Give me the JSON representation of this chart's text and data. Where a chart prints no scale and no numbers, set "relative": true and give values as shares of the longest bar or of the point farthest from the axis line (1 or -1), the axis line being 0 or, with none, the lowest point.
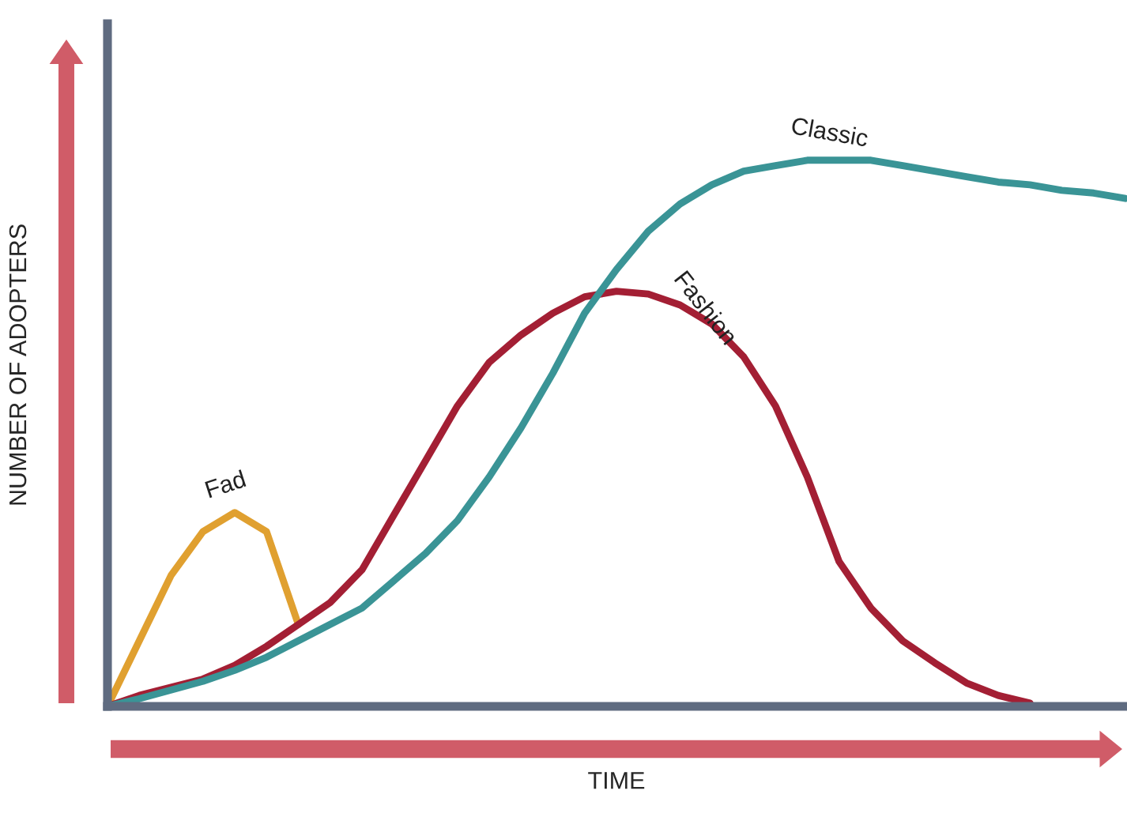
{
  "chart_data": {
    "type": "line",
    "relative": true,
    "xlabel": "TIME",
    "ylabel": "NUMBER OF ADOPTERS",
    "legend": false,
    "marker": "none",
    "line_style": "solid",
    "categories": [
      null,
      null,
      null,
      null,
      null,
      null,
      null,
      null,
      null,
      null,
      null,
      null,
      null,
      null,
      null,
      null,
      null,
      null,
      null,
      null,
      null,
      null,
      null,
      null,
      null,
      null,
      null,
      null,
      null,
      null,
      null,
      null,
      null
    ],
    "series": [
      {
        "name": "Fad",
        "color": "#e0a030",
        "values": [
          0,
          0.12,
          0.24,
          0.32,
          0.355,
          0.32,
          0.15,
          null,
          null,
          null,
          null,
          null,
          null,
          null,
          null,
          null,
          null,
          null,
          null,
          null,
          null,
          null,
          null,
          null,
          null,
          null,
          null,
          null,
          null,
          null,
          null,
          null,
          null
        ]
      },
      {
        "name": "Fashion",
        "color": "#a31f34",
        "values": [
          0,
          0.02,
          0.035,
          0.05,
          0.075,
          0.11,
          0.15,
          0.19,
          0.25,
          0.35,
          0.45,
          0.55,
          0.63,
          0.68,
          0.72,
          0.75,
          0.76,
          0.755,
          0.735,
          0.7,
          0.64,
          0.55,
          0.42,
          0.265,
          0.18,
          0.12,
          0.08,
          0.043,
          0.02,
          0.006,
          null,
          null,
          null
        ]
      },
      {
        "name": "Classic",
        "color": "#3a9496",
        "values": [
          0,
          0.014,
          0.03,
          0.046,
          0.066,
          0.09,
          0.12,
          0.15,
          0.18,
          0.23,
          0.28,
          0.34,
          0.42,
          0.51,
          0.61,
          0.72,
          0.8,
          0.87,
          0.92,
          0.955,
          0.98,
          0.99,
          1.0,
          1.0,
          1.0,
          0.99,
          0.98,
          0.97,
          0.96,
          0.955,
          0.945,
          0.94,
          0.93
        ]
      }
    ]
  }
}
